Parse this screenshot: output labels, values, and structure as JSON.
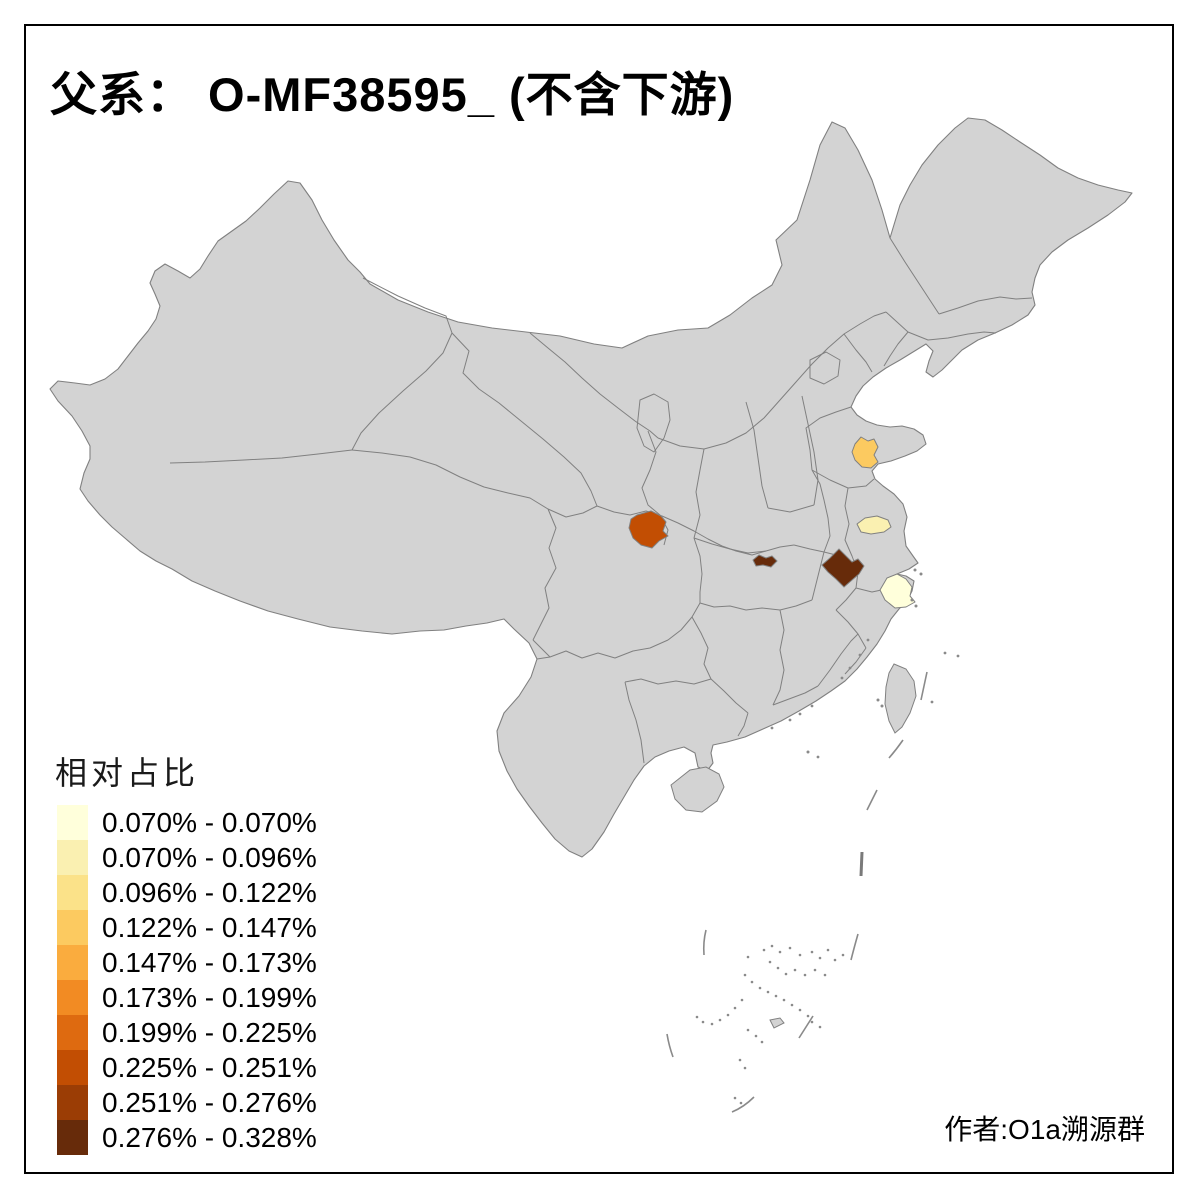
{
  "title": "父系： O-MF38595_ (不含下游)",
  "author": "作者:O1a溯源群",
  "colors": {
    "background": "#FFFFFF",
    "frame": "#000000",
    "land": "#D3D3D3",
    "border": "#808080",
    "text": "#000000"
  },
  "legend": {
    "title": "相对占比",
    "classes": [
      {
        "label": "0.070% - 0.070%",
        "color": "#FFFFDB"
      },
      {
        "label": "0.070% - 0.096%",
        "color": "#FAF0B1"
      },
      {
        "label": "0.096% - 0.122%",
        "color": "#FBE289"
      },
      {
        "label": "0.122% - 0.147%",
        "color": "#FCCA60"
      },
      {
        "label": "0.147% - 0.173%",
        "color": "#FAAC3E"
      },
      {
        "label": "0.173% - 0.199%",
        "color": "#F28B23"
      },
      {
        "label": "0.199% - 0.225%",
        "color": "#DE6A10"
      },
      {
        "label": "0.225% - 0.251%",
        "color": "#C24E03"
      },
      {
        "label": "0.251% - 0.276%",
        "color": "#9B3D05"
      },
      {
        "label": "0.276% - 0.328%",
        "color": "#672B0A"
      }
    ]
  },
  "chart_data": {
    "type": "choropleth-map",
    "region_scope": "China, prefecture level",
    "value_label": "相对占比",
    "value_range_pct": [
      0.07,
      0.328
    ],
    "classification": "10 graded bins, light yellow to dark brown",
    "highlighted_regions": [
      {
        "area": "Shandong (Weifang area)",
        "bin": "0.122% - 0.147%",
        "color": "#FCCA60"
      },
      {
        "area": "Jiangsu (Taizhou area)",
        "bin": "0.070% - 0.096%",
        "color": "#FAF0B1"
      },
      {
        "area": "North Sichuan (Guangyuan area)",
        "bin": "0.225% - 0.251%",
        "color": "#C24E03"
      },
      {
        "area": "Central Hubei (Jianghan area)",
        "bin": "0.276% - 0.328%",
        "color": "#672B0A"
      },
      {
        "area": "South Anhui (Xuancheng area)",
        "bin": "0.276% - 0.328%",
        "color": "#672B0A"
      },
      {
        "area": "Zhejiang (Ningbo area)",
        "bin": "0.070% - 0.070%",
        "color": "#FFFFDB"
      }
    ]
  }
}
